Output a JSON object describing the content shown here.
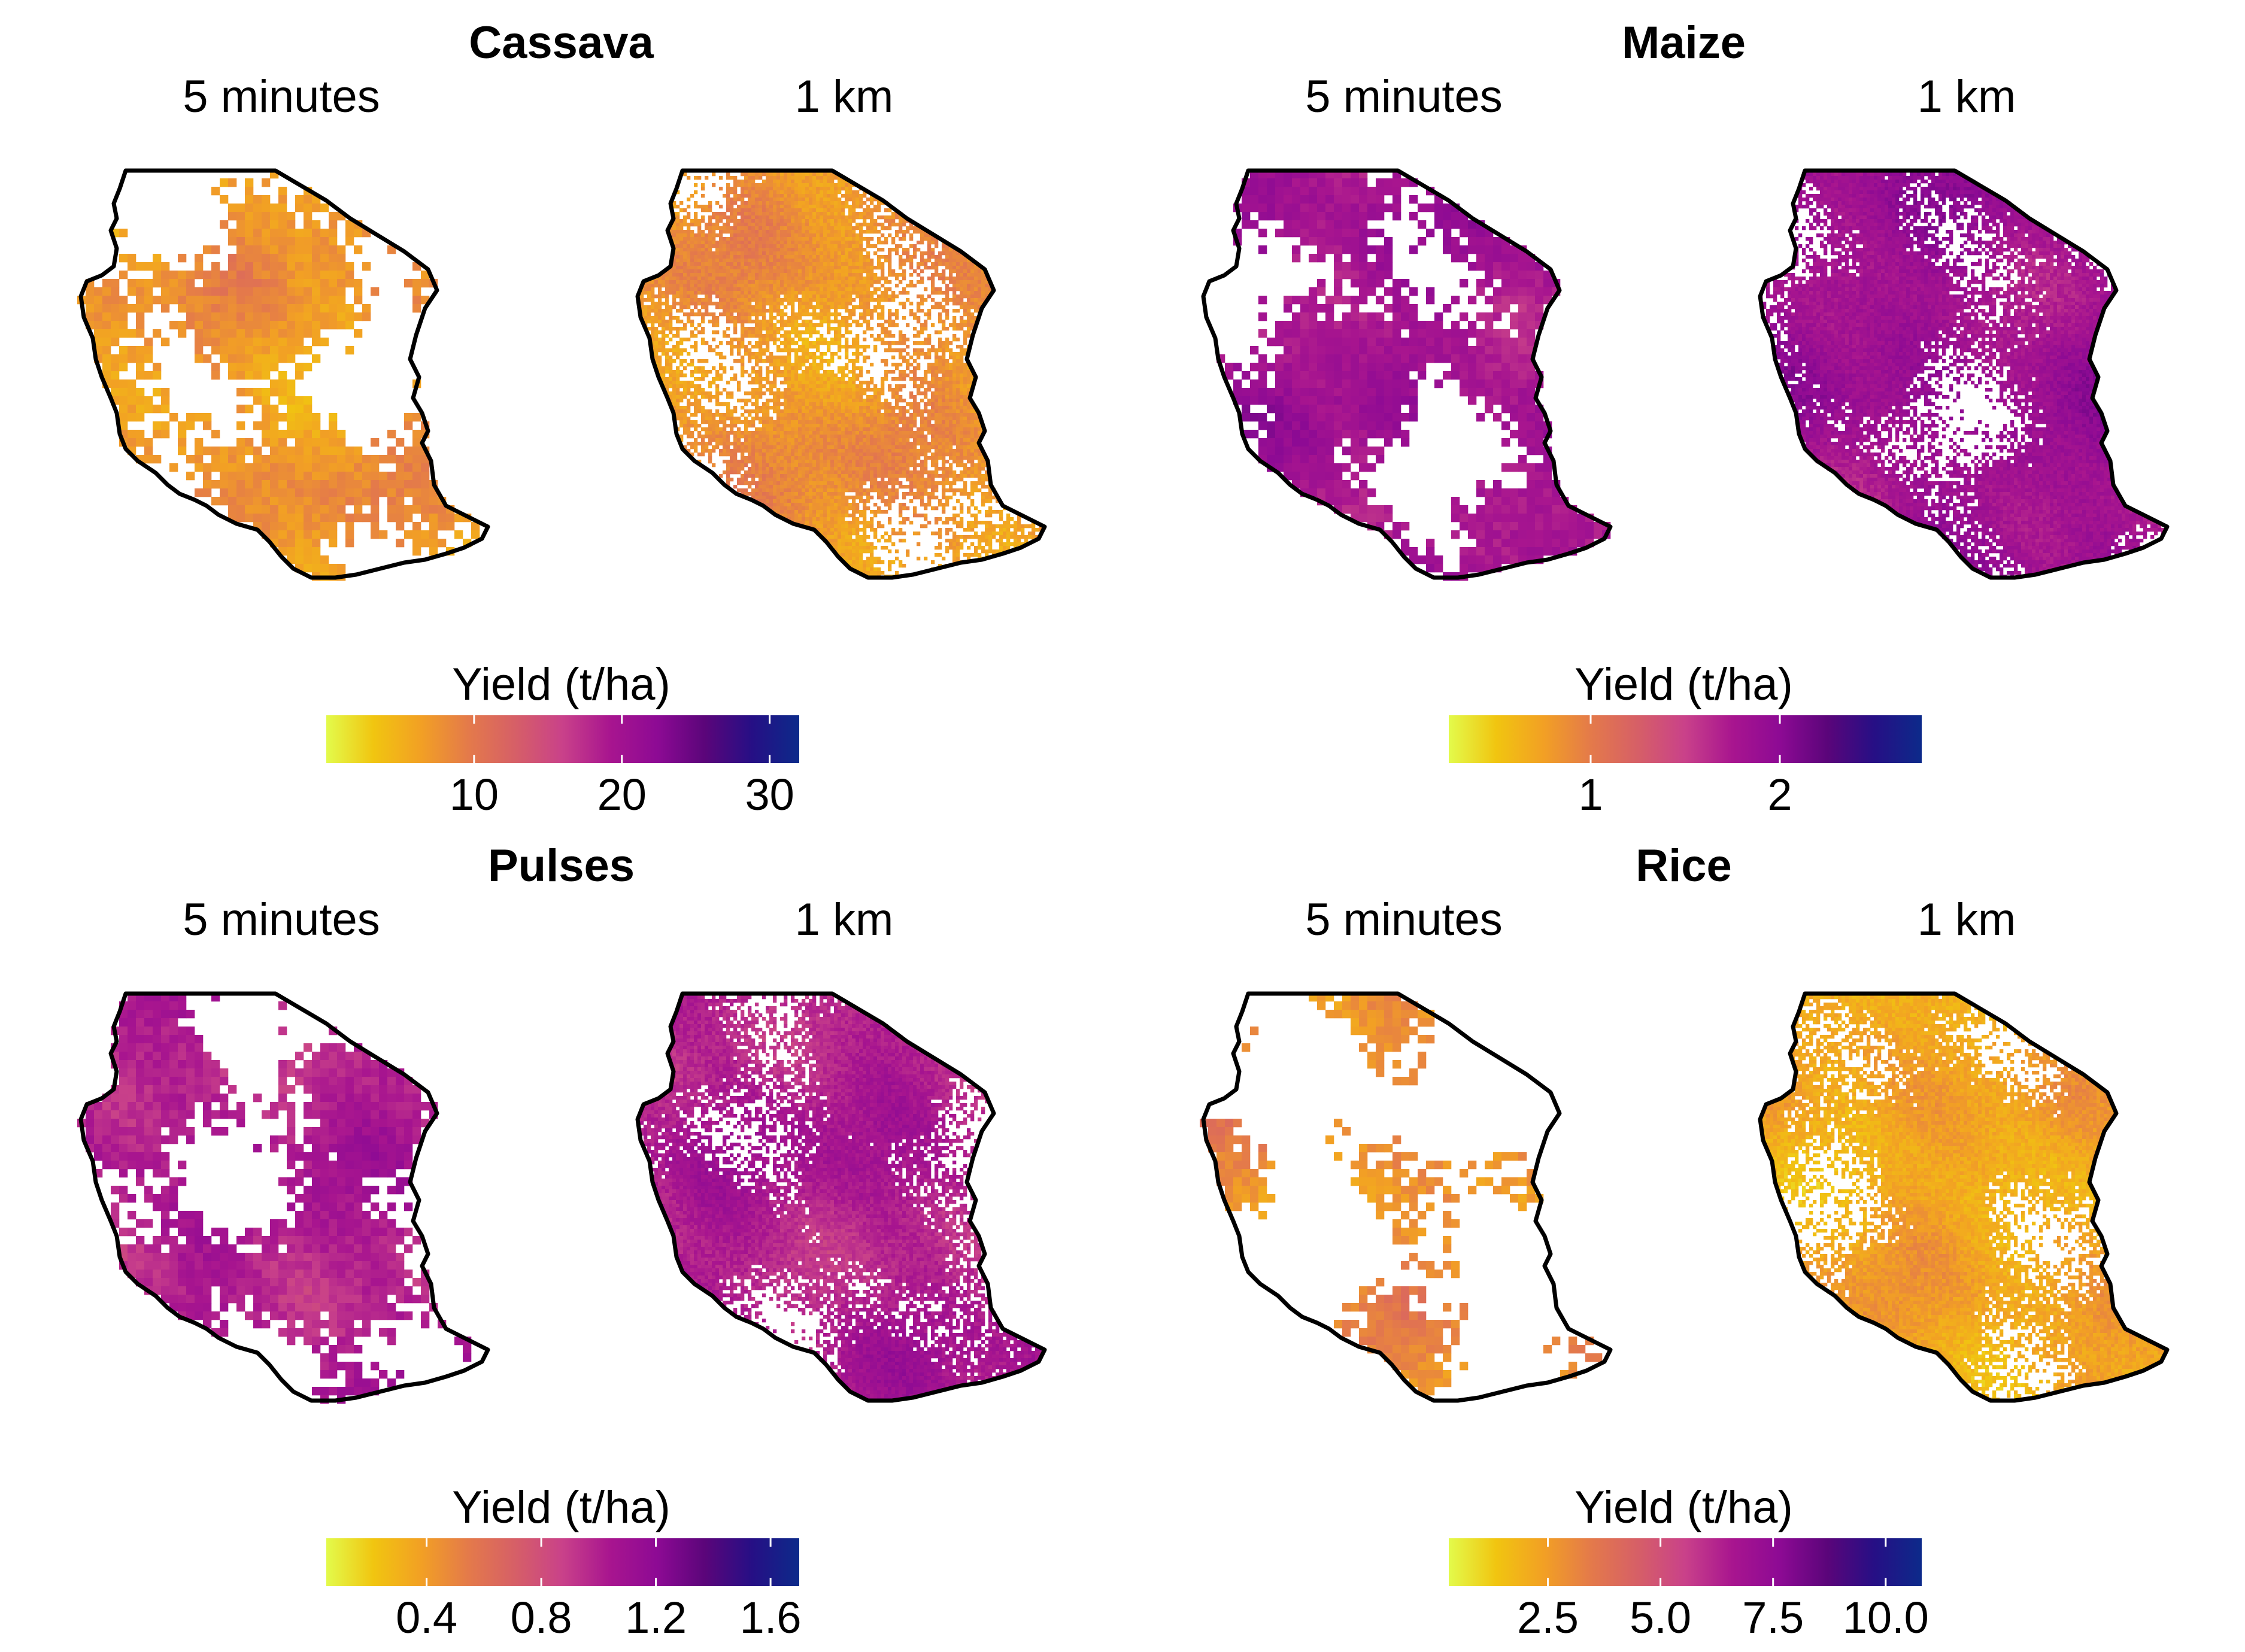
{
  "panels": [
    {
      "crop": "Cassava",
      "left_subtitle": "5 minutes",
      "right_subtitle": "1 km",
      "legend_title": "Yield (t/ha)",
      "tick_labels": [
        "10",
        "20",
        "30"
      ],
      "tick_values": [
        10,
        20,
        30
      ],
      "scale_range": [
        0,
        32
      ],
      "coarse_cover": 0.55,
      "fine_cover": 0.7,
      "coarse_color_pos": 0.22,
      "fine_color_pos": 0.23
    },
    {
      "crop": "Maize",
      "left_subtitle": "5 minutes",
      "right_subtitle": "1 km",
      "legend_title": "Yield (t/ha)",
      "tick_labels": [
        "1",
        "2"
      ],
      "tick_values": [
        1,
        2
      ],
      "scale_range": [
        0.25,
        2.75
      ],
      "coarse_cover": 0.6,
      "fine_cover": 0.7,
      "coarse_color_pos": 0.62,
      "fine_color_pos": 0.64
    },
    {
      "crop": "Pulses",
      "left_subtitle": "5 minutes",
      "right_subtitle": "1 km",
      "legend_title": "Yield (t/ha)",
      "tick_labels": [
        "0.4",
        "0.8",
        "1.2",
        "1.6"
      ],
      "tick_values": [
        0.4,
        0.8,
        1.2,
        1.6
      ],
      "scale_range": [
        0.05,
        1.7
      ],
      "coarse_cover": 0.55,
      "fine_cover": 0.72,
      "coarse_color_pos": 0.58,
      "fine_color_pos": 0.58
    },
    {
      "crop": "Rice",
      "left_subtitle": "5 minutes",
      "right_subtitle": "1 km",
      "legend_title": "Yield (t/ha)",
      "tick_labels": [
        "2.5",
        "5.0",
        "7.5",
        "10.0"
      ],
      "tick_values": [
        2.5,
        5.0,
        7.5,
        10.0
      ],
      "scale_range": [
        0.3,
        10.8
      ],
      "coarse_cover": 0.35,
      "fine_cover": 0.72,
      "coarse_color_pos": 0.24,
      "fine_color_pos": 0.18
    }
  ],
  "colors": {
    "plasma_stops": [
      "#e3fb4b",
      "#f1c510",
      "#f2a024",
      "#e47a4a",
      "#d65f67",
      "#c9418a",
      "#a8158f",
      "#8d0a94",
      "#5b057a",
      "#260f85",
      "#0c2a8a"
    ],
    "boundary": "#000000",
    "background": "#ffffff"
  }
}
